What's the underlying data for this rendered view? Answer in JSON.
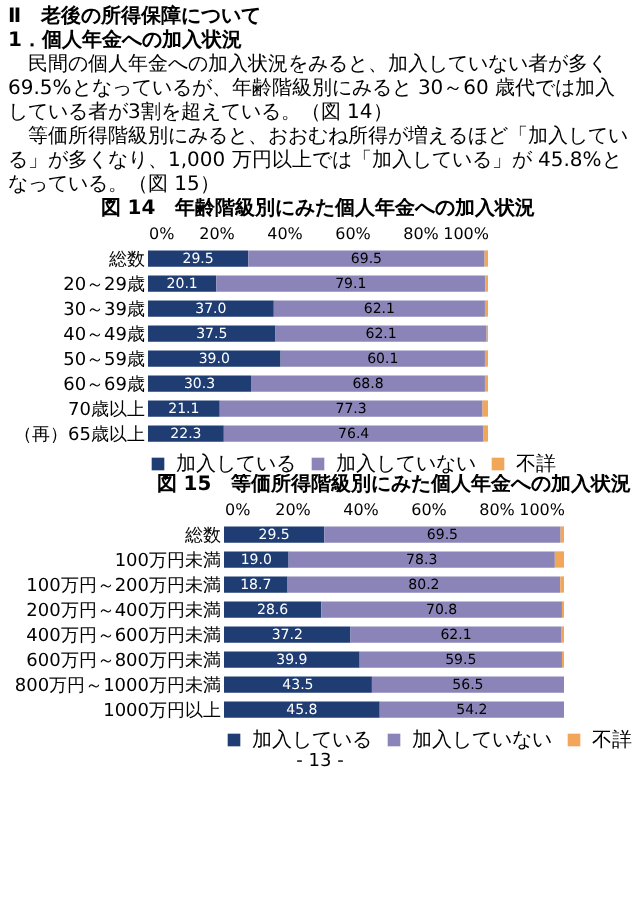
{
  "chart_data": [
    {
      "type": "bar",
      "orientation": "horizontal",
      "stacked": true,
      "title": "図 14　年齢階級別にみた個人年金への加入状況",
      "annotations": [
        "Ⅱ　老後の所得保障について",
        "1．個人年金への加入状況",
        "民間の個人年金への加入状況をみると、加入していない者が多く 69.5%となっているが、年齢階級別にみると 30～60 歳代では加入している者が3割を超えている。（図 14）",
        "等価所得階級別にみると、おおむね所得が増えるほど「加入している」が多くなり、1,000 万円以上では「加入している」が 45.8%となっている。（図 15）"
      ],
      "categories": [
        "総数",
        "20～29歳",
        "30～39歳",
        "40～49歳",
        "50～59歳",
        "60～69歳",
        "70歳以上",
        "（再）65歳以上"
      ],
      "series": [
        {
          "name": "加入している",
          "color": "#1f3d73",
          "values": [
            29.5,
            20.1,
            37.0,
            37.5,
            39.0,
            30.3,
            21.1,
            22.3
          ],
          "value_labels": [
            "29.5",
            "20.1",
            "37.0",
            "37.5",
            "39.0",
            "30.3",
            "21.1",
            "22.3"
          ]
        },
        {
          "name": "加入していない",
          "color": "#8a84b8",
          "values": [
            69.5,
            79.1,
            62.1,
            62.1,
            60.1,
            68.8,
            77.3,
            76.4
          ],
          "value_labels": [
            "69.5",
            "79.1",
            "62.1",
            "62.1",
            "60.1",
            "68.8",
            "77.3",
            "76.4"
          ]
        },
        {
          "name": "不詳",
          "color": "#f2a65a",
          "values": [
            1.0,
            0.8,
            0.9,
            0.4,
            0.9,
            0.9,
            1.6,
            1.3
          ]
        }
      ],
      "xlim": [
        0,
        100
      ],
      "xticks": [
        {
          "value": 0,
          "label": "0%"
        },
        {
          "value": 20,
          "label": "20%"
        },
        {
          "value": 40,
          "label": "40%"
        },
        {
          "value": 60,
          "label": "60%"
        },
        {
          "value": 80,
          "label": "80%"
        },
        {
          "value": 100,
          "label": "100%"
        }
      ],
      "legend": "bottom"
    },
    {
      "type": "bar",
      "orientation": "horizontal",
      "stacked": true,
      "title": "図 15　等価所得階級別にみた個人年金への加入状況",
      "annotations": [
        "- 13 -"
      ],
      "categories": [
        "総数",
        "100万円未満",
        "100万円～200万円未満",
        "200万円～400万円未満",
        "400万円～600万円未満",
        "600万円～800万円未満",
        "800万円～1000万円未満",
        "1000万円以上"
      ],
      "series": [
        {
          "name": "加入している",
          "color": "#1f3d73",
          "values": [
            29.5,
            19.0,
            18.7,
            28.6,
            37.2,
            39.9,
            43.5,
            45.8
          ],
          "value_labels": [
            "29.5",
            "19.0",
            "18.7",
            "28.6",
            "37.2",
            "39.9",
            "43.5",
            "45.8"
          ]
        },
        {
          "name": "加入していない",
          "color": "#8a84b8",
          "values": [
            69.5,
            78.3,
            80.2,
            70.8,
            62.1,
            59.5,
            56.5,
            54.2
          ],
          "value_labels": [
            "69.5",
            "78.3",
            "80.2",
            "70.8",
            "62.1",
            "59.5",
            "56.5",
            "54.2"
          ]
        },
        {
          "name": "不詳",
          "color": "#f2a65a",
          "values": [
            1.0,
            2.7,
            1.1,
            0.6,
            0.7,
            0.6,
            0.0,
            0.0
          ]
        }
      ],
      "xlim": [
        0,
        100
      ],
      "xticks": [
        {
          "value": 0,
          "label": "0%"
        },
        {
          "value": 20,
          "label": "20%"
        },
        {
          "value": 40,
          "label": "40%"
        },
        {
          "value": 60,
          "label": "60%"
        },
        {
          "value": 80,
          "label": "80%"
        },
        {
          "value": 100,
          "label": "100%"
        }
      ],
      "legend": "bottom"
    }
  ]
}
